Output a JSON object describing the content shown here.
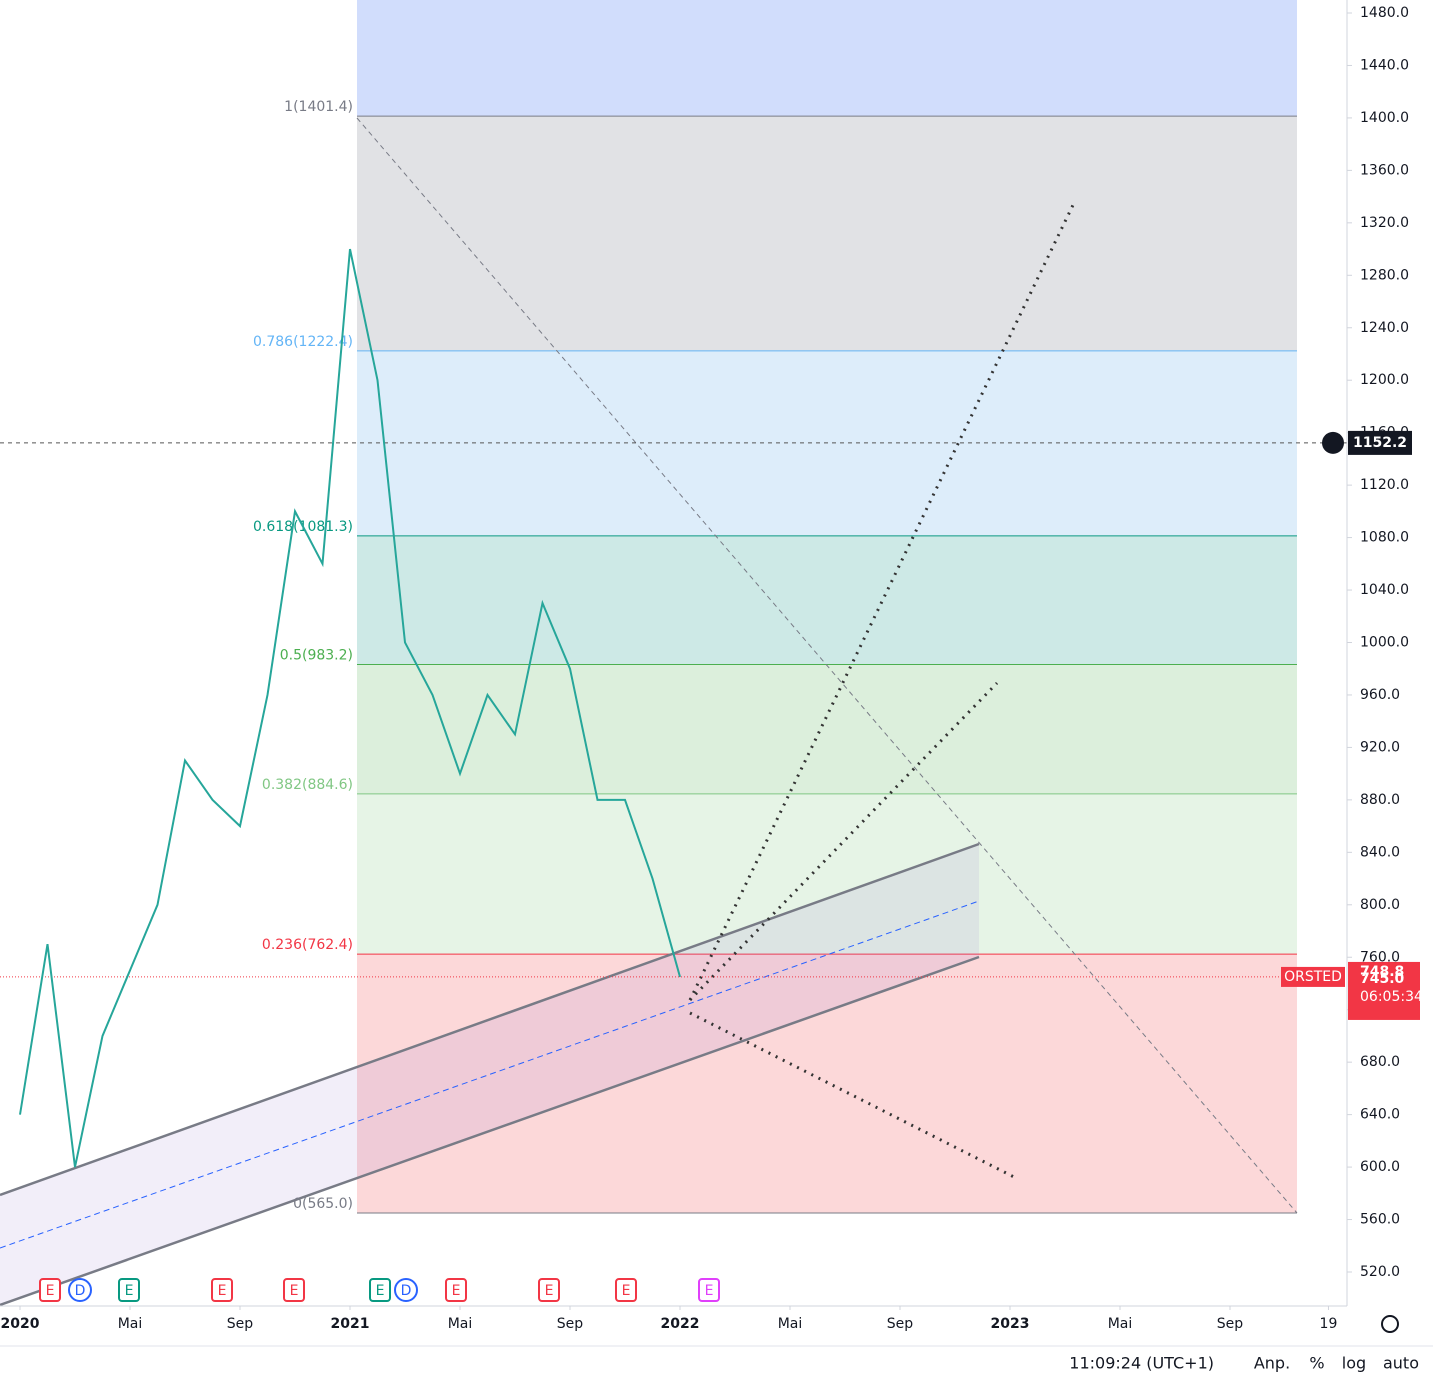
{
  "chart_data": {
    "type": "line",
    "symbol": "ORSTED",
    "x": [
      "2020-01",
      "2020-02",
      "2020-03",
      "2020-04",
      "2020-05",
      "2020-06",
      "2020-07",
      "2020-08",
      "2020-09",
      "2020-10",
      "2020-11",
      "2020-12",
      "2021-01",
      "2021-02",
      "2021-03",
      "2021-04",
      "2021-05",
      "2021-06",
      "2021-07",
      "2021-08",
      "2021-09",
      "2021-10",
      "2021-11",
      "2021-12",
      "2022-01"
    ],
    "series": [
      {
        "name": "ORSTED",
        "color": "#26a69a",
        "values": [
          640,
          770,
          600,
          700,
          750,
          800,
          910,
          880,
          860,
          960,
          1100,
          1060,
          1300,
          1200,
          1000,
          960,
          900,
          960,
          930,
          1030,
          980,
          880,
          880,
          820,
          745
        ]
      }
    ],
    "ylim": [
      500,
      1490
    ],
    "yticks": [
      {
        "value": 520,
        "label": "520.0"
      },
      {
        "value": 560,
        "label": "560.0"
      },
      {
        "value": 600,
        "label": "600.0"
      },
      {
        "value": 640,
        "label": "640.0"
      },
      {
        "value": 680,
        "label": "680.0"
      },
      {
        "value": 720,
        "label": "720.0"
      },
      {
        "value": 760,
        "label": "760.0"
      },
      {
        "value": 800,
        "label": "800.0"
      },
      {
        "value": 840,
        "label": "840.0"
      },
      {
        "value": 880,
        "label": "880.0"
      },
      {
        "value": 920,
        "label": "920.0"
      },
      {
        "value": 960,
        "label": "960.0"
      },
      {
        "value": 1000,
        "label": "1000.0"
      },
      {
        "value": 1040,
        "label": "1040.0"
      },
      {
        "value": 1080,
        "label": "1080.0"
      },
      {
        "value": 1120,
        "label": "1120.0"
      },
      {
        "value": 1160,
        "label": "1160.0"
      },
      {
        "value": 1200,
        "label": "1200.0"
      },
      {
        "value": 1240,
        "label": "1240.0"
      },
      {
        "value": 1280,
        "label": "1280.0"
      },
      {
        "value": 1320,
        "label": "1320.0"
      },
      {
        "value": 1360,
        "label": "1360.0"
      },
      {
        "value": 1400,
        "label": "1400.0"
      },
      {
        "value": 1440,
        "label": "1440.0"
      },
      {
        "value": 1480,
        "label": "1480.0"
      }
    ],
    "xticks": [
      {
        "value": "2020-01",
        "label": "2020"
      },
      {
        "value": "2020-05",
        "label": "Mai"
      },
      {
        "value": "2020-09",
        "label": "Sep"
      },
      {
        "value": "2021-01",
        "label": "2021"
      },
      {
        "value": "2021-05",
        "label": "Mai"
      },
      {
        "value": "2021-09",
        "label": "Sep"
      },
      {
        "value": "2022-01",
        "label": "2022"
      },
      {
        "value": "2022-05",
        "label": "Mai"
      },
      {
        "value": "2022-09",
        "label": "Sep"
      },
      {
        "value": "2023-01",
        "label": "2023"
      },
      {
        "value": "2023-05",
        "label": "Mai"
      },
      {
        "value": "2023-09",
        "label": "Sep"
      },
      {
        "value": "2023-12-19",
        "label": "19"
      }
    ],
    "fib_levels": [
      {
        "value": 1401.4,
        "label": "1(1401.4)",
        "color": "#787b86",
        "fill": "#e1e2e5"
      },
      {
        "value": 1222.4,
        "label": "0.786(1222.4)",
        "color": "#64b5f6",
        "fill": "#ddedfa"
      },
      {
        "value": 1081.3,
        "label": "0.618(1081.3)",
        "color": "#089981",
        "fill": "#cde9e6"
      },
      {
        "value": 983.2,
        "label": "0.5(983.2)",
        "color": "#4caf50",
        "fill": "#dcefdc"
      },
      {
        "value": 884.6,
        "label": "0.382(884.6)",
        "color": "#81c784",
        "fill": "#e6f4e6"
      },
      {
        "value": 762.4,
        "label": "0.236(762.4)",
        "color": "#f23645",
        "fill": "#fcd8d9"
      },
      {
        "value": 565.0,
        "label": "0(565.0)",
        "color": "#787b86",
        "fill": "#fcd8d9"
      }
    ],
    "crosshair": {
      "value": 1152.2,
      "label": "1152.2"
    },
    "price_labels": [
      {
        "value": 748.8,
        "label": "748.8"
      },
      {
        "value": 745.0,
        "label": "745.0"
      }
    ],
    "countdown": "06:05:34",
    "events": [
      {
        "text": "E",
        "color": "#f23645"
      },
      {
        "text": "D",
        "color": "#2962ff"
      },
      {
        "text": "E",
        "color": "#089981"
      },
      {
        "text": "E",
        "color": "#f23645"
      },
      {
        "text": "E",
        "color": "#f23645"
      },
      {
        "text": "E",
        "color": "#089981"
      },
      {
        "text": "D",
        "color": "#2962ff"
      },
      {
        "text": "E",
        "color": "#f23645"
      },
      {
        "text": "E",
        "color": "#f23645"
      },
      {
        "text": "E",
        "color": "#f23645"
      },
      {
        "text": "E",
        "color": "#e040fb"
      }
    ],
    "footer": {
      "time": "11:09:24 (UTC+1)",
      "buttons": [
        "Anp.",
        "%",
        "log",
        "auto"
      ]
    }
  }
}
